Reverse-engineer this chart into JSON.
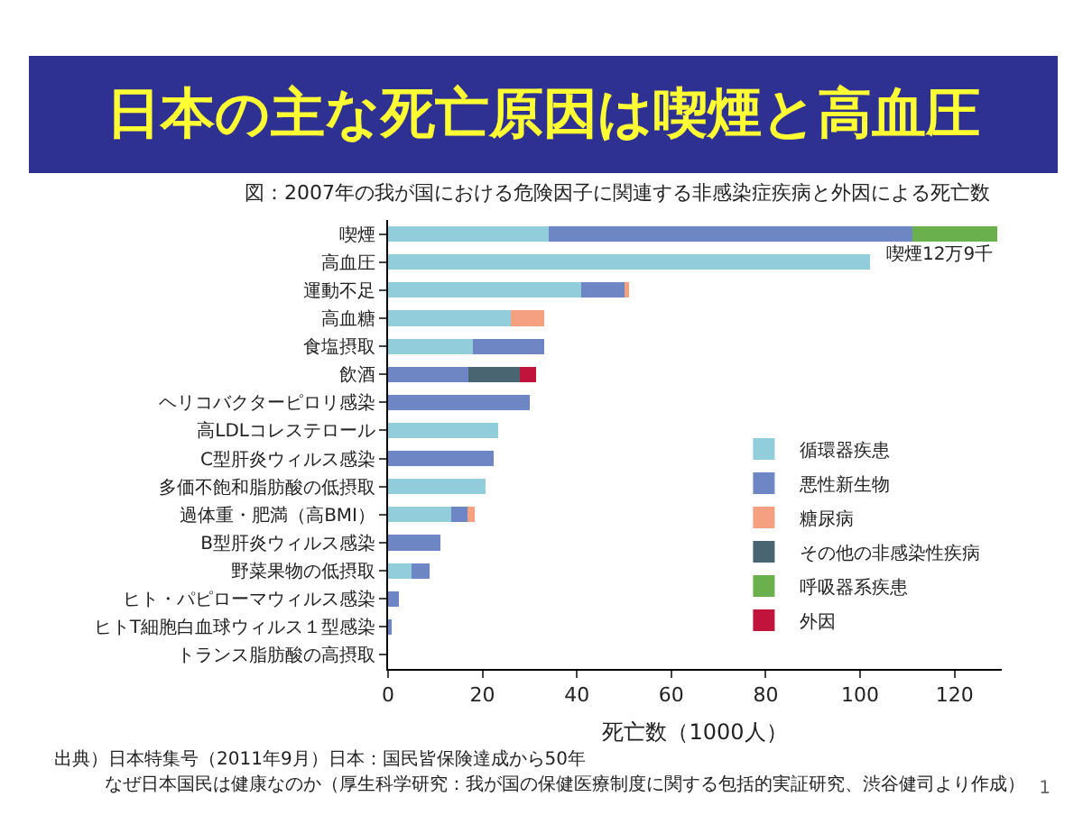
{
  "chart_data": {
    "type": "bar",
    "orientation": "horizontal",
    "stacked": true,
    "title": "日本の主な死亡原因は喫煙と高血圧",
    "subtitle": "図：2007年の我が国における危険因子に関連する非感染症疾病と外因による死亡数",
    "xlabel": "死亡数（1000人）",
    "categories": [
      "喫煙",
      "高血圧",
      "運動不足",
      "高血糖",
      "食塩摂取",
      "飲酒",
      "ヘリコバクターピロリ感染",
      "高LDLコレステロール",
      "C型肝炎ウィルス感染",
      "多価不飽和脂肪酸の低摂取",
      "過体重・肥満（高BMI）",
      "B型肝炎ウィルス感染",
      "野菜果物の低摂取",
      "ヒト・パピローマウィルス感染",
      "ヒトT細胞白血球ウィルス１型感染",
      "トランス脂肪酸の高摂取"
    ],
    "series": [
      {
        "name": "循環器疾患",
        "color": "#92cddc",
        "values": [
          34,
          102,
          41,
          26,
          18,
          0,
          0,
          23.4,
          0,
          20.6,
          13.4,
          0,
          4.9,
          0,
          0,
          0
        ]
      },
      {
        "name": "悪性新生物",
        "color": "#6f86c4",
        "values": [
          77,
          0,
          9,
          0,
          15,
          17,
          30,
          0,
          22.4,
          0,
          3.4,
          11,
          3.8,
          2.3,
          0.5,
          0
        ]
      },
      {
        "name": "糖尿病",
        "color": "#f4a081",
        "values": [
          0,
          0,
          1,
          7,
          0,
          0,
          0,
          0,
          0,
          0,
          1.6,
          0,
          0,
          0,
          0,
          0
        ]
      },
      {
        "name": "その他の非感染性疾病",
        "color": "#4a6572",
        "values": [
          0,
          0,
          0,
          0,
          0,
          11,
          0,
          0,
          0,
          0,
          0,
          0,
          0,
          0,
          0,
          0
        ]
      },
      {
        "name": "呼吸器系疾患",
        "color": "#6ab04c",
        "values": [
          18,
          0,
          0,
          0,
          0,
          0,
          0,
          0,
          0,
          0,
          0,
          0,
          0,
          0,
          0,
          0
        ]
      },
      {
        "name": "外因",
        "color": "#c0143c",
        "values": [
          0,
          0,
          0,
          0,
          0,
          3.3,
          0,
          0,
          0,
          0,
          0,
          0,
          0,
          0,
          0,
          0
        ]
      }
    ],
    "xlim": [
      0,
      130
    ],
    "xticks": [
      0,
      20,
      40,
      60,
      80,
      100,
      120
    ],
    "grid": false,
    "legend": "bottom right",
    "annotations": [
      {
        "text": "喫煙12万9千",
        "x": 129,
        "y": "喫煙"
      },
      "出典）日本特集号（2011年9月）日本：国民皆保険達成から50年",
      "なぜ日本国民は健康なのか（厚生科学研究：我が国の保健医療制度に関する包括的実証研究、渋谷健司より作成）",
      "1"
    ]
  }
}
